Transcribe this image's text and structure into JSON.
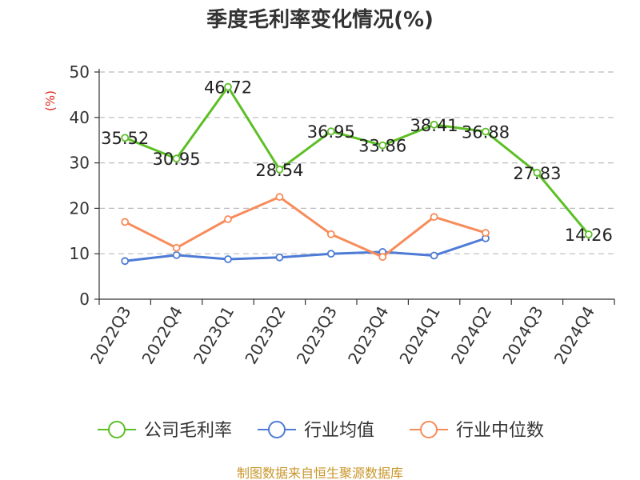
{
  "chart_data": {
    "type": "line",
    "title": "季度毛利率变化情况(%)",
    "ylabel": "(%)",
    "xlabel": "",
    "ylim": [
      0,
      50
    ],
    "yticks": [
      0,
      10,
      20,
      30,
      40,
      50
    ],
    "grid": "horizontal-dashed",
    "legend_position": "bottom",
    "categories": [
      "2022Q3",
      "2022Q4",
      "2023Q1",
      "2023Q2",
      "2023Q3",
      "2023Q4",
      "2024Q1",
      "2024Q2",
      "2024Q3",
      "2024Q4"
    ],
    "series": [
      {
        "name": "公司毛利率",
        "color": "#5cbf26",
        "labeled": true,
        "values": [
          35.52,
          30.95,
          46.72,
          28.54,
          36.95,
          33.86,
          38.41,
          36.88,
          27.83,
          14.26
        ],
        "labels": [
          "35.52",
          "30.95",
          "46.72",
          "28.54",
          "36.95",
          "33.86",
          "38.41",
          "36.88",
          "27.83",
          "14.26"
        ]
      },
      {
        "name": "行业均值",
        "color": "#4d7bd6",
        "labeled": false,
        "values": [
          8.4,
          9.7,
          8.8,
          9.2,
          10.0,
          10.4,
          9.6,
          13.4,
          null,
          null
        ]
      },
      {
        "name": "行业中位数",
        "color": "#f78b5a",
        "labeled": false,
        "values": [
          17.0,
          11.3,
          17.6,
          22.5,
          14.3,
          9.3,
          18.1,
          14.6,
          null,
          null
        ]
      }
    ]
  },
  "source": "制图数据来自恒生聚源数据库"
}
